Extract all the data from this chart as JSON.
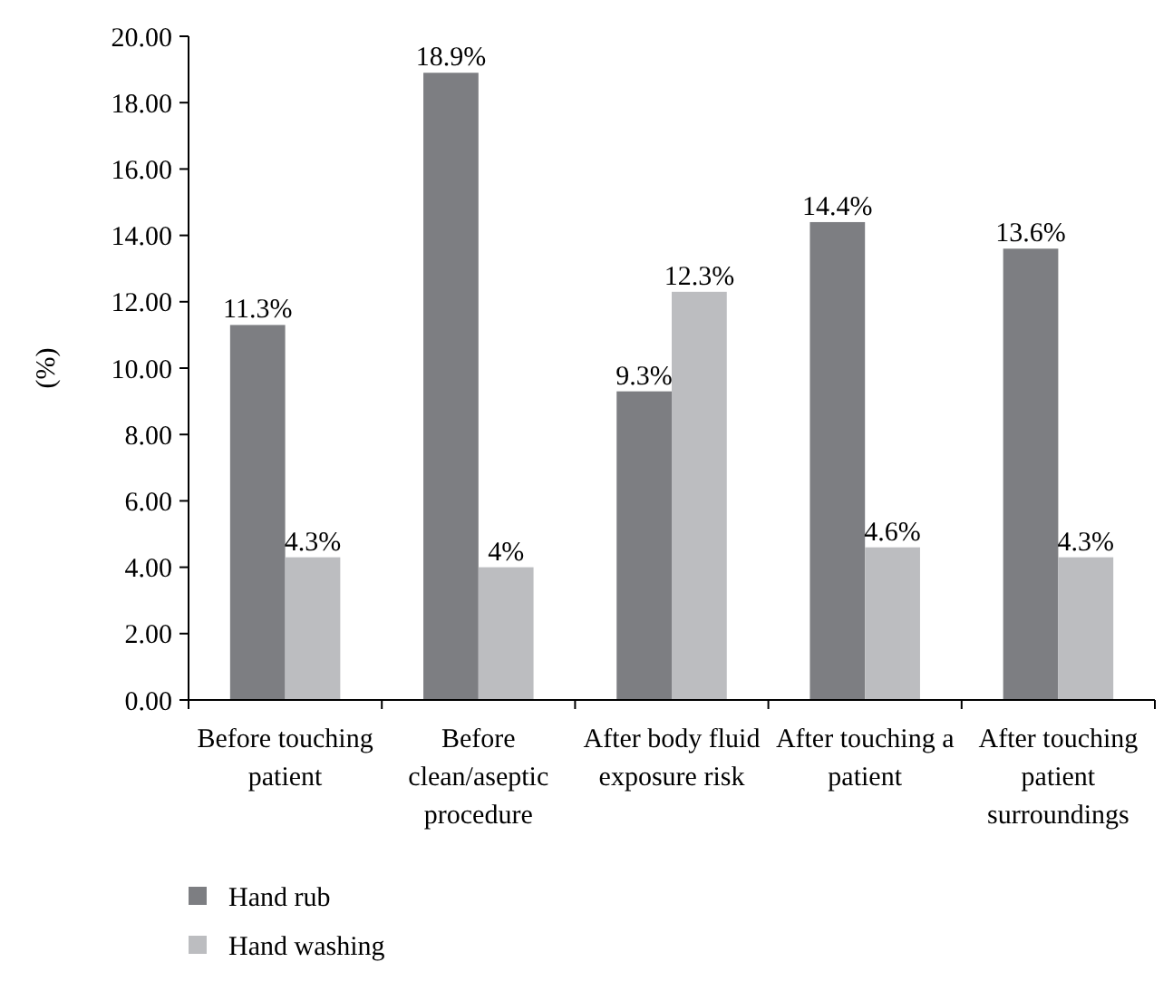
{
  "chart_data": {
    "type": "bar",
    "ylabel": "(%)",
    "categories": [
      "Before touching patient",
      "Before clean/aseptic procedure",
      "After body fluid exposure risk",
      "After touching a patient",
      "After touching patient surroundings"
    ],
    "series": [
      {
        "name": "Hand rub",
        "color": "#7d7e82",
        "values": [
          11.3,
          18.9,
          9.3,
          14.4,
          13.6
        ],
        "value_labels": [
          "11.3%",
          "18.9%",
          "9.3%",
          "14.4%",
          "13.6%"
        ]
      },
      {
        "name": "Hand washing",
        "color": "#bcbdc0",
        "values": [
          4.3,
          4.0,
          12.3,
          4.6,
          4.3
        ],
        "value_labels": [
          "4.3%",
          "4%",
          "12.3%",
          "4.6%",
          "4.3%"
        ]
      }
    ],
    "ylim": [
      0,
      20
    ],
    "yticks": [
      {
        "value": 0,
        "label": "0.00"
      },
      {
        "value": 2,
        "label": "2.00"
      },
      {
        "value": 4,
        "label": "4.00"
      },
      {
        "value": 6,
        "label": "6.00"
      },
      {
        "value": 8,
        "label": "8.00"
      },
      {
        "value": 10,
        "label": "10.00"
      },
      {
        "value": 12,
        "label": "12.00"
      },
      {
        "value": 14,
        "label": "14.00"
      },
      {
        "value": 16,
        "label": "16.00"
      },
      {
        "value": 18,
        "label": "18.00"
      },
      {
        "value": 20,
        "label": "20.00"
      }
    ],
    "grid": false,
    "legend": "bottom left"
  }
}
